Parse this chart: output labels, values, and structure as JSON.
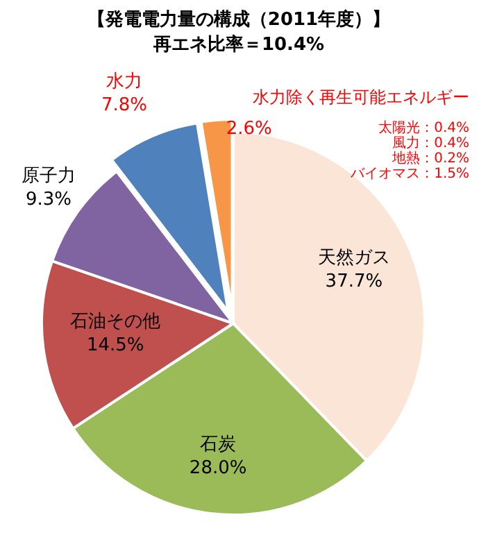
{
  "chart_data": {
    "type": "pie",
    "title": "【発電電力量の構成（2011年度）】",
    "subtitle": "再エネ比率＝10.4%",
    "categories": [
      "天然ガス",
      "石炭",
      "石油その他",
      "原子力",
      "水力",
      "水力除く再生可能エネルギー"
    ],
    "values": [
      37.7,
      28.0,
      14.5,
      9.3,
      7.8,
      2.6
    ],
    "value_labels": [
      "37.7%",
      "28.0%",
      "14.5%",
      "9.3%",
      "7.8%",
      "2.6%"
    ],
    "colors": [
      "#fbe5d6",
      "#9bbb59",
      "#c0504d",
      "#8064a2",
      "#4f81bd",
      "#f79646"
    ],
    "annotations": [
      "太陽光：0.4%",
      "風力：0.4%",
      "地熱：0.2%",
      "バイオマス：1.5%"
    ]
  }
}
